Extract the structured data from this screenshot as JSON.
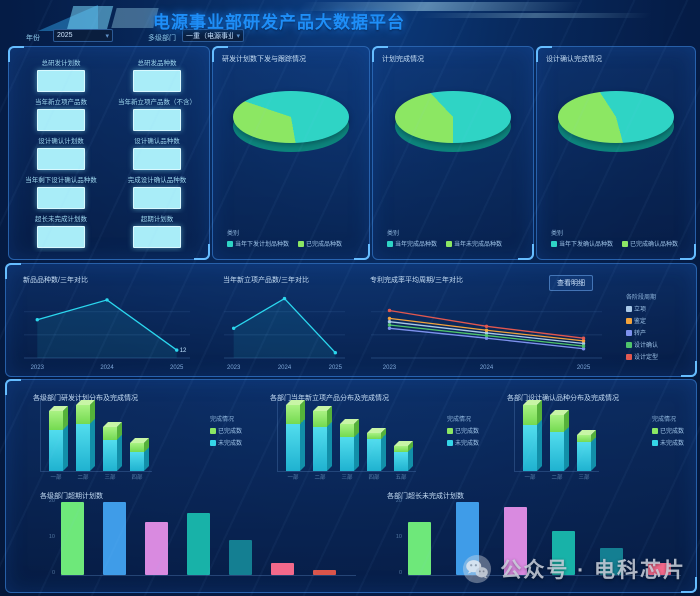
{
  "header": {
    "title": "电源事业部研发产品大数据平台",
    "filters": [
      {
        "label": "年份",
        "value": "2025"
      },
      {
        "label": "多级部门",
        "value": "一重（电源事业部）"
      }
    ]
  },
  "stats_panel": {
    "items": [
      "总研发计划数",
      "总研发品种数",
      "当年新立项产品数",
      "当年新立项产品数（不含）",
      "设计确认计划数",
      "设计确认品种数",
      "当年剩下设计确认品种数",
      "完成设计确认品种数",
      "超长未完成计划数",
      "超期计划数"
    ]
  },
  "mid_panel": {
    "detail_button": "查看明细"
  },
  "watermark": {
    "icon": "wechat-icon",
    "text": "公众号 · 电科芯片"
  },
  "colors": {
    "accent_blue": "#1e8ef7",
    "pie_teal": "#2fd4c5",
    "pie_green": "#8ce763",
    "line_cyan": "#2bd7ee",
    "stat_box": "#a9edf8"
  },
  "chart_data": [
    {
      "id": "pie1",
      "type": "pie",
      "title": "研发计划数下发与跟踪情况",
      "legend_title": "类别",
      "green_start": 170,
      "slices": [
        {
          "name": "当年下发计划品种数",
          "value": 67,
          "color": "#2fd4c5"
        },
        {
          "name": "已完成品种数",
          "value": 33,
          "color": "#8ce763"
        }
      ]
    },
    {
      "id": "pie2",
      "type": "pie",
      "title": "计划完成情况",
      "legend_title": "类别",
      "green_start": 180,
      "slices": [
        {
          "name": "当年完成品种数",
          "value": 62,
          "color": "#2fd4c5"
        },
        {
          "name": "当年未完成品种数",
          "value": 38,
          "color": "#8ce763"
        }
      ]
    },
    {
      "id": "pie3",
      "type": "pie",
      "title": "设计确认完成情况",
      "legend_title": "类别",
      "green_start": 165,
      "slices": [
        {
          "name": "当年下发确认品种数",
          "value": 55,
          "color": "#2fd4c5"
        },
        {
          "name": "已完成确认品种数",
          "value": 45,
          "color": "#8ce763"
        }
      ]
    },
    {
      "id": "lineA",
      "type": "line",
      "title": "新品品种数/三年对比",
      "x": [
        "2023",
        "2024",
        "2025"
      ],
      "ylim": [
        0,
        100
      ],
      "grid": true,
      "end_label": "12",
      "series": [
        {
          "name": "新品品种数",
          "color": "#2bd7ee",
          "values": [
            58,
            88,
            12
          ]
        }
      ]
    },
    {
      "id": "lineB",
      "type": "line",
      "title": "当年新立项产品数/三年对比",
      "x": [
        "2023",
        "2024",
        "2025"
      ],
      "ylim": [
        0,
        100
      ],
      "grid": true,
      "series": [
        {
          "name": "当年新立项产品数",
          "color": "#2bd7ee",
          "values": [
            45,
            90,
            8
          ]
        }
      ]
    },
    {
      "id": "lineC",
      "type": "line",
      "title": "专利完成率平均周期/三年对比",
      "x": [
        "2023",
        "2024",
        "2025"
      ],
      "ylim": [
        0,
        100
      ],
      "grid": true,
      "legend_title": "各阶段周期",
      "legend_pos": "right",
      "series": [
        {
          "name": "立项",
          "color": "#a9c9e8",
          "values": [
            55,
            38,
            22
          ]
        },
        {
          "name": "鉴定",
          "color": "#f2a33c",
          "values": [
            60,
            42,
            26
          ]
        },
        {
          "name": "转产",
          "color": "#7e92ee",
          "values": [
            45,
            30,
            14
          ]
        },
        {
          "name": "设计确认",
          "color": "#4fc46b",
          "values": [
            50,
            34,
            18
          ]
        },
        {
          "name": "设计定型",
          "color": "#e2574e",
          "values": [
            72,
            48,
            30
          ]
        }
      ]
    },
    {
      "id": "b3d1",
      "type": "bar3d",
      "title": "各级部门研发计划分布及完成情况",
      "legend_title": "完成情况",
      "legend": [
        {
          "name": "已完成数",
          "color": "#8ce763"
        },
        {
          "name": "未完成数",
          "color": "#35d6e8"
        }
      ],
      "categories": [
        "一部",
        "二部",
        "三部",
        "四部"
      ],
      "totals": [
        19,
        21,
        14,
        9
      ],
      "completed": [
        6,
        6,
        4,
        3
      ]
    },
    {
      "id": "b3d2",
      "type": "bar3d",
      "title": "各部门当年新立项产品分布及完成情况",
      "legend_title": "完成情况",
      "legend": [
        {
          "name": "已完成数",
          "color": "#8ce763"
        },
        {
          "name": "未完成数",
          "color": "#35d6e8"
        }
      ],
      "categories": [
        "一部",
        "二部",
        "三部",
        "四部",
        "五部"
      ],
      "totals": [
        21,
        19,
        15,
        12,
        8
      ],
      "completed": [
        6,
        5,
        4,
        2,
        2
      ]
    },
    {
      "id": "b3d3",
      "type": "bar3d",
      "title": "各部门设计确认品种分布及完成情况",
      "legend_title": "完成情况",
      "legend": [
        {
          "name": "已完成数",
          "color": "#8ce763"
        },
        {
          "name": "未完成数",
          "color": "#35d6e8"
        }
      ],
      "categories": [
        "一部",
        "二部",
        "三部"
      ],
      "totals": [
        20,
        17,
        11
      ],
      "completed": [
        6,
        5,
        2
      ]
    },
    {
      "id": "barL",
      "type": "bar",
      "title": "各级部门超期计划数",
      "ylim": [
        0,
        20
      ],
      "yticks": [
        0,
        10,
        20
      ],
      "gap": 19,
      "values": [
        20,
        20,
        14.5,
        17,
        9.5,
        3.2,
        1.5
      ],
      "colors": [
        "#6ee87a",
        "#3f9ce8",
        "#d98ae0",
        "#18b2a8",
        "#147f92",
        "#f2698b",
        "#d9544a"
      ]
    },
    {
      "id": "barR",
      "type": "bar",
      "title": "各部门超长未完成计划数",
      "ylim": [
        0,
        20
      ],
      "yticks": [
        0,
        10,
        20
      ],
      "gap": 25,
      "values": [
        14.5,
        20,
        18.7,
        12,
        7.3,
        3.4
      ],
      "colors": [
        "#6ee87a",
        "#3f9ce8",
        "#d98ae0",
        "#18b2a8",
        "#147f92",
        "#f2698b"
      ]
    }
  ]
}
